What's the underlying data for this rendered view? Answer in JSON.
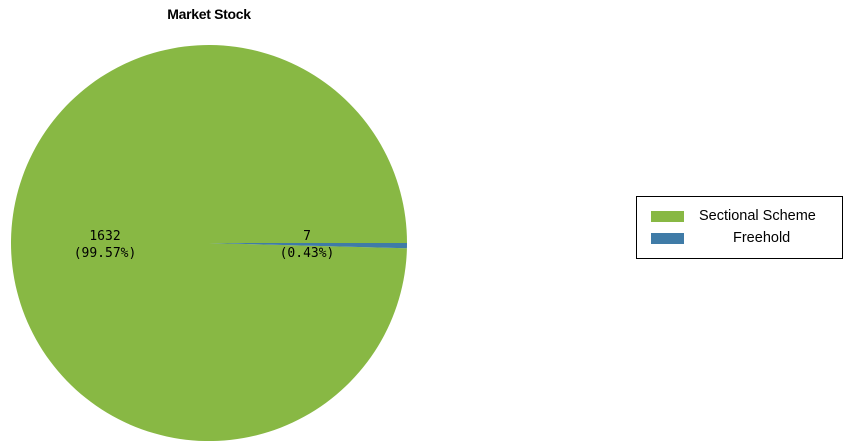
{
  "chart_data": {
    "type": "pie",
    "title": "Market Stock",
    "slices": [
      {
        "name": "Sectional Scheme",
        "value": 1632,
        "percent_label": "(99.57%)",
        "value_label": "1632",
        "color": "#88b844"
      },
      {
        "name": "Freehold",
        "value": 7,
        "percent_label": "(0.43%)",
        "value_label": "7",
        "color": "#3f7ba7"
      }
    ],
    "legend": {
      "placement": "right",
      "entries": [
        "Sectional Scheme",
        "Freehold"
      ]
    }
  }
}
